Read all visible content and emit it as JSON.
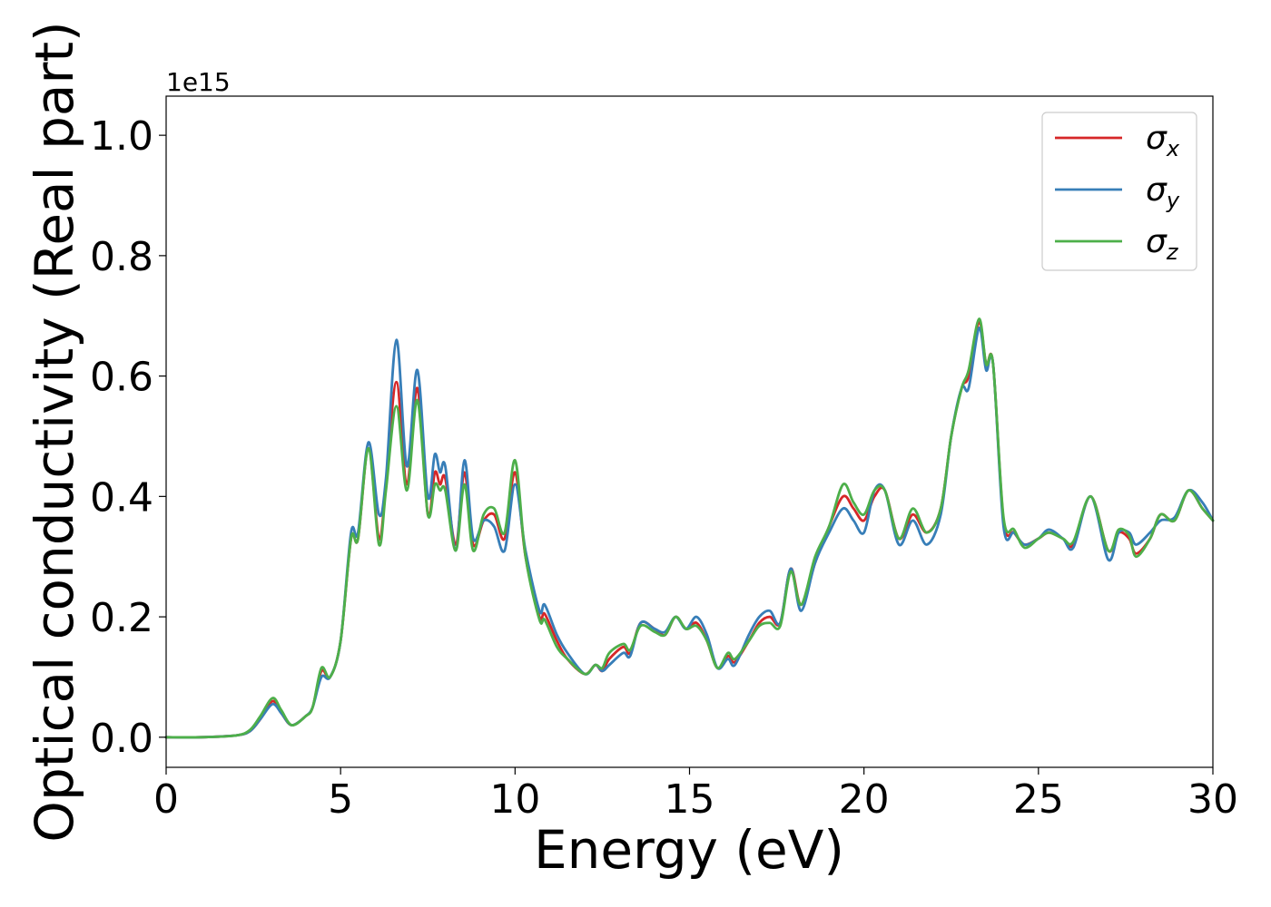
{
  "chart_data": {
    "type": "line",
    "xlabel": "Energy (eV)",
    "ylabel": "Optical conductivity (Real part)",
    "y_offset_label": "1e15",
    "xlim": [
      0,
      30
    ],
    "ylim": [
      -0.05,
      1.065
    ],
    "x_ticks": [
      0,
      5,
      10,
      15,
      20,
      25,
      30
    ],
    "x_tick_labels": [
      "0",
      "5",
      "10",
      "15",
      "20",
      "25",
      "30"
    ],
    "y_ticks": [
      0.0,
      0.2,
      0.4,
      0.6,
      0.8,
      1.0
    ],
    "y_tick_labels": [
      "0.0",
      "0.2",
      "0.4",
      "0.6",
      "0.8",
      "1.0"
    ],
    "grid": false,
    "legend_position": "top-right",
    "series": [
      {
        "name": "x",
        "legend_symbol": "σ",
        "color": "#d62728",
        "points": [
          [
            0,
            0
          ],
          [
            1,
            0
          ],
          [
            2,
            0.003
          ],
          [
            2.4,
            0.01
          ],
          [
            2.7,
            0.03
          ],
          [
            3.05,
            0.06
          ],
          [
            3.3,
            0.04
          ],
          [
            3.6,
            0.02
          ],
          [
            4,
            0.035
          ],
          [
            4.2,
            0.05
          ],
          [
            4.45,
            0.11
          ],
          [
            4.7,
            0.1
          ],
          [
            5,
            0.16
          ],
          [
            5.3,
            0.33
          ],
          [
            5.5,
            0.33
          ],
          [
            5.8,
            0.48
          ],
          [
            6.1,
            0.33
          ],
          [
            6.3,
            0.42
          ],
          [
            6.6,
            0.59
          ],
          [
            6.9,
            0.42
          ],
          [
            7.2,
            0.58
          ],
          [
            7.5,
            0.37
          ],
          [
            7.7,
            0.44
          ],
          [
            7.85,
            0.42
          ],
          [
            8,
            0.43
          ],
          [
            8.3,
            0.32
          ],
          [
            8.55,
            0.44
          ],
          [
            8.8,
            0.32
          ],
          [
            9.1,
            0.36
          ],
          [
            9.4,
            0.37
          ],
          [
            9.7,
            0.33
          ],
          [
            10,
            0.44
          ],
          [
            10.3,
            0.3
          ],
          [
            10.7,
            0.2
          ],
          [
            10.85,
            0.205
          ],
          [
            11.2,
            0.16
          ],
          [
            11.5,
            0.13
          ],
          [
            12,
            0.105
          ],
          [
            12.3,
            0.12
          ],
          [
            12.5,
            0.11
          ],
          [
            12.7,
            0.13
          ],
          [
            13.1,
            0.15
          ],
          [
            13.3,
            0.14
          ],
          [
            13.6,
            0.19
          ],
          [
            14,
            0.18
          ],
          [
            14.3,
            0.17
          ],
          [
            14.6,
            0.2
          ],
          [
            14.9,
            0.18
          ],
          [
            15.2,
            0.19
          ],
          [
            15.5,
            0.16
          ],
          [
            15.8,
            0.115
          ],
          [
            16.1,
            0.135
          ],
          [
            16.3,
            0.125
          ],
          [
            16.7,
            0.16
          ],
          [
            17,
            0.19
          ],
          [
            17.3,
            0.2
          ],
          [
            17.6,
            0.19
          ],
          [
            17.9,
            0.28
          ],
          [
            18.2,
            0.22
          ],
          [
            18.6,
            0.29
          ],
          [
            19,
            0.35
          ],
          [
            19.4,
            0.4
          ],
          [
            19.7,
            0.38
          ],
          [
            20,
            0.36
          ],
          [
            20.3,
            0.4
          ],
          [
            20.6,
            0.41
          ],
          [
            21,
            0.33
          ],
          [
            21.4,
            0.37
          ],
          [
            21.8,
            0.34
          ],
          [
            22.2,
            0.38
          ],
          [
            22.5,
            0.5
          ],
          [
            22.8,
            0.58
          ],
          [
            23,
            0.6
          ],
          [
            23.3,
            0.69
          ],
          [
            23.5,
            0.62
          ],
          [
            23.7,
            0.62
          ],
          [
            24,
            0.36
          ],
          [
            24.3,
            0.34
          ],
          [
            24.6,
            0.32
          ],
          [
            25,
            0.33
          ],
          [
            25.3,
            0.34
          ],
          [
            25.7,
            0.33
          ],
          [
            26,
            0.32
          ],
          [
            26.5,
            0.4
          ],
          [
            27,
            0.31
          ],
          [
            27.3,
            0.34
          ],
          [
            27.6,
            0.33
          ],
          [
            27.8,
            0.305
          ],
          [
            28.2,
            0.33
          ],
          [
            28.5,
            0.37
          ],
          [
            28.9,
            0.36
          ],
          [
            29.3,
            0.41
          ],
          [
            29.7,
            0.38
          ],
          [
            30,
            0.36
          ]
        ]
      },
      {
        "name": "y",
        "legend_symbol": "σ",
        "color": "#377eb8",
        "points": [
          [
            0,
            0
          ],
          [
            1,
            0
          ],
          [
            2,
            0.003
          ],
          [
            2.4,
            0.01
          ],
          [
            2.7,
            0.03
          ],
          [
            3.05,
            0.055
          ],
          [
            3.3,
            0.04
          ],
          [
            3.6,
            0.02
          ],
          [
            4,
            0.035
          ],
          [
            4.2,
            0.05
          ],
          [
            4.45,
            0.1
          ],
          [
            4.7,
            0.1
          ],
          [
            5,
            0.16
          ],
          [
            5.3,
            0.34
          ],
          [
            5.5,
            0.34
          ],
          [
            5.8,
            0.49
          ],
          [
            6.1,
            0.37
          ],
          [
            6.3,
            0.43
          ],
          [
            6.6,
            0.66
          ],
          [
            6.9,
            0.45
          ],
          [
            7.2,
            0.61
          ],
          [
            7.5,
            0.4
          ],
          [
            7.7,
            0.47
          ],
          [
            7.85,
            0.44
          ],
          [
            8,
            0.45
          ],
          [
            8.3,
            0.31
          ],
          [
            8.55,
            0.46
          ],
          [
            8.8,
            0.33
          ],
          [
            9.1,
            0.36
          ],
          [
            9.4,
            0.35
          ],
          [
            9.7,
            0.31
          ],
          [
            10,
            0.42
          ],
          [
            10.3,
            0.31
          ],
          [
            10.7,
            0.21
          ],
          [
            10.85,
            0.22
          ],
          [
            11.2,
            0.17
          ],
          [
            11.5,
            0.14
          ],
          [
            12,
            0.105
          ],
          [
            12.3,
            0.12
          ],
          [
            12.5,
            0.11
          ],
          [
            12.7,
            0.12
          ],
          [
            13.1,
            0.14
          ],
          [
            13.3,
            0.135
          ],
          [
            13.6,
            0.19
          ],
          [
            14,
            0.18
          ],
          [
            14.3,
            0.175
          ],
          [
            14.6,
            0.2
          ],
          [
            14.9,
            0.18
          ],
          [
            15.2,
            0.2
          ],
          [
            15.5,
            0.17
          ],
          [
            15.8,
            0.115
          ],
          [
            16.1,
            0.13
          ],
          [
            16.3,
            0.12
          ],
          [
            16.7,
            0.17
          ],
          [
            17,
            0.2
          ],
          [
            17.3,
            0.21
          ],
          [
            17.6,
            0.19
          ],
          [
            17.9,
            0.28
          ],
          [
            18.2,
            0.21
          ],
          [
            18.6,
            0.29
          ],
          [
            19,
            0.34
          ],
          [
            19.4,
            0.38
          ],
          [
            19.7,
            0.36
          ],
          [
            20,
            0.34
          ],
          [
            20.3,
            0.41
          ],
          [
            20.6,
            0.41
          ],
          [
            21,
            0.32
          ],
          [
            21.4,
            0.36
          ],
          [
            21.8,
            0.32
          ],
          [
            22.2,
            0.37
          ],
          [
            22.5,
            0.5
          ],
          [
            22.8,
            0.58
          ],
          [
            23,
            0.58
          ],
          [
            23.3,
            0.68
          ],
          [
            23.5,
            0.61
          ],
          [
            23.7,
            0.62
          ],
          [
            24,
            0.35
          ],
          [
            24.3,
            0.34
          ],
          [
            24.6,
            0.32
          ],
          [
            25,
            0.33
          ],
          [
            25.3,
            0.345
          ],
          [
            25.7,
            0.33
          ],
          [
            26,
            0.315
          ],
          [
            26.5,
            0.4
          ],
          [
            27,
            0.295
          ],
          [
            27.3,
            0.34
          ],
          [
            27.6,
            0.34
          ],
          [
            27.8,
            0.32
          ],
          [
            28.2,
            0.34
          ],
          [
            28.5,
            0.36
          ],
          [
            28.9,
            0.365
          ],
          [
            29.3,
            0.41
          ],
          [
            29.7,
            0.39
          ],
          [
            30,
            0.36
          ]
        ]
      },
      {
        "name": "z",
        "legend_symbol": "σ",
        "color": "#4daf4a",
        "points": [
          [
            0,
            0
          ],
          [
            1,
            0
          ],
          [
            2,
            0.003
          ],
          [
            2.4,
            0.012
          ],
          [
            2.7,
            0.035
          ],
          [
            3.05,
            0.065
          ],
          [
            3.3,
            0.045
          ],
          [
            3.6,
            0.02
          ],
          [
            4,
            0.035
          ],
          [
            4.2,
            0.05
          ],
          [
            4.45,
            0.115
          ],
          [
            4.7,
            0.1
          ],
          [
            5,
            0.16
          ],
          [
            5.3,
            0.33
          ],
          [
            5.5,
            0.33
          ],
          [
            5.8,
            0.48
          ],
          [
            6.1,
            0.32
          ],
          [
            6.3,
            0.41
          ],
          [
            6.6,
            0.55
          ],
          [
            6.9,
            0.41
          ],
          [
            7.2,
            0.56
          ],
          [
            7.5,
            0.37
          ],
          [
            7.7,
            0.42
          ],
          [
            7.85,
            0.41
          ],
          [
            8,
            0.41
          ],
          [
            8.3,
            0.31
          ],
          [
            8.55,
            0.42
          ],
          [
            8.8,
            0.31
          ],
          [
            9.1,
            0.37
          ],
          [
            9.4,
            0.38
          ],
          [
            9.7,
            0.34
          ],
          [
            10,
            0.46
          ],
          [
            10.3,
            0.3
          ],
          [
            10.7,
            0.195
          ],
          [
            10.85,
            0.195
          ],
          [
            11.2,
            0.15
          ],
          [
            11.5,
            0.13
          ],
          [
            12,
            0.105
          ],
          [
            12.3,
            0.12
          ],
          [
            12.5,
            0.115
          ],
          [
            12.7,
            0.14
          ],
          [
            13.1,
            0.155
          ],
          [
            13.3,
            0.145
          ],
          [
            13.6,
            0.185
          ],
          [
            14,
            0.175
          ],
          [
            14.3,
            0.17
          ],
          [
            14.6,
            0.2
          ],
          [
            14.9,
            0.18
          ],
          [
            15.2,
            0.185
          ],
          [
            15.5,
            0.16
          ],
          [
            15.8,
            0.115
          ],
          [
            16.1,
            0.14
          ],
          [
            16.3,
            0.13
          ],
          [
            16.7,
            0.16
          ],
          [
            17,
            0.185
          ],
          [
            17.3,
            0.19
          ],
          [
            17.6,
            0.185
          ],
          [
            17.9,
            0.275
          ],
          [
            18.2,
            0.22
          ],
          [
            18.6,
            0.3
          ],
          [
            19,
            0.35
          ],
          [
            19.4,
            0.42
          ],
          [
            19.7,
            0.39
          ],
          [
            20,
            0.37
          ],
          [
            20.3,
            0.41
          ],
          [
            20.6,
            0.41
          ],
          [
            21,
            0.33
          ],
          [
            21.4,
            0.38
          ],
          [
            21.8,
            0.34
          ],
          [
            22.2,
            0.38
          ],
          [
            22.5,
            0.5
          ],
          [
            22.8,
            0.58
          ],
          [
            23,
            0.61
          ],
          [
            23.3,
            0.695
          ],
          [
            23.5,
            0.62
          ],
          [
            23.7,
            0.62
          ],
          [
            24,
            0.365
          ],
          [
            24.3,
            0.345
          ],
          [
            24.6,
            0.315
          ],
          [
            25,
            0.33
          ],
          [
            25.3,
            0.34
          ],
          [
            25.7,
            0.33
          ],
          [
            26,
            0.325
          ],
          [
            26.5,
            0.4
          ],
          [
            27,
            0.31
          ],
          [
            27.3,
            0.345
          ],
          [
            27.6,
            0.335
          ],
          [
            27.8,
            0.3
          ],
          [
            28.2,
            0.33
          ],
          [
            28.5,
            0.37
          ],
          [
            28.9,
            0.36
          ],
          [
            29.3,
            0.41
          ],
          [
            29.7,
            0.38
          ],
          [
            30,
            0.36
          ]
        ]
      }
    ]
  }
}
